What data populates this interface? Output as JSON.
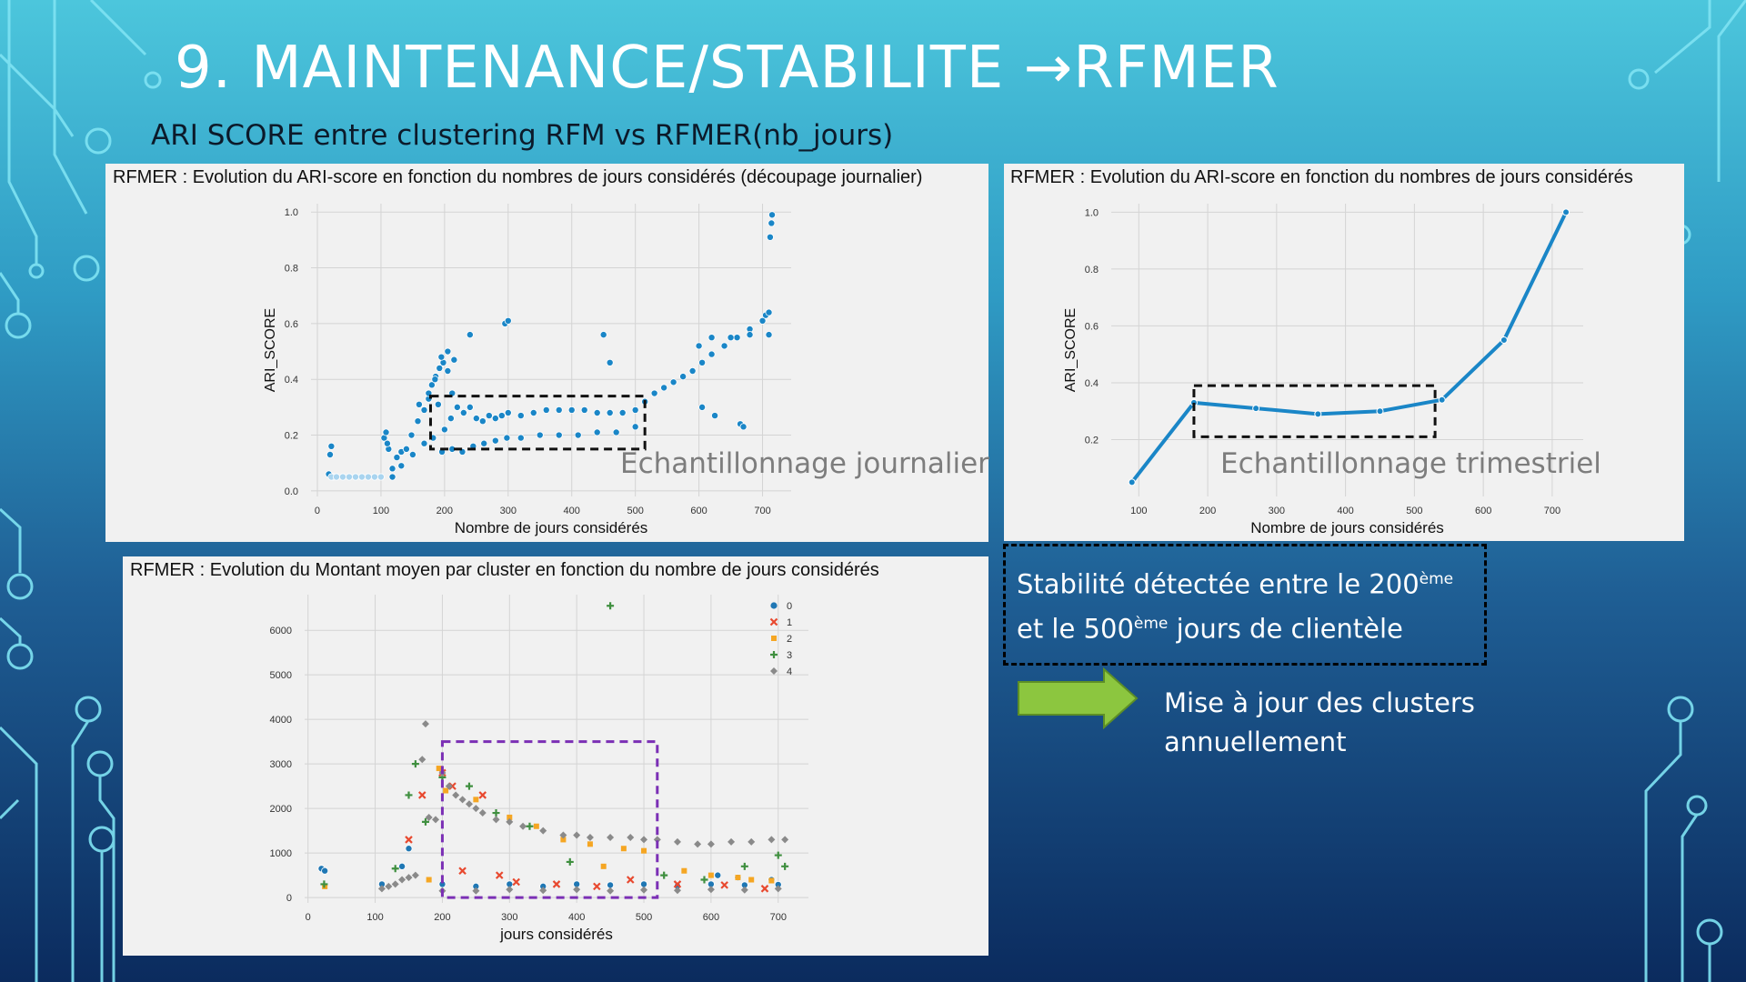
{
  "slide": {
    "title": "9. MAINTENANCE/STABILITE",
    "title_arrow": "→",
    "title_suffix": "RFMER",
    "subtitle": "ARI SCORE entre clustering RFM vs RFMER(nb_jours)",
    "note": {
      "part1": "Stabilité détectée entre le 200",
      "sup1": "ème",
      "part2": "et le 500",
      "sup2": "ème",
      "part3": " jours de clientèle"
    },
    "action_line1": "Mise à jour des clusters",
    "action_line2": "annuellement",
    "overlay_daily": "Echantillonnage journalier",
    "overlay_quarterly": "Echantillonnage trimestriel",
    "accent_color": "#1a86c7",
    "arrow_color": "#8cc63f",
    "highlight_color": "#7b2fb5"
  },
  "chart_data": [
    {
      "type": "scatter",
      "title": "RFMER : Evolution du ARI-score en fonction du nombres de jours considérés (découpage journalier)",
      "xlabel": "Nombre de jours considérés",
      "ylabel": "ARI_SCORE",
      "xlim": [
        -10,
        745
      ],
      "ylim": [
        -0.02,
        1.03
      ],
      "xticks": [
        0,
        100,
        200,
        300,
        400,
        500,
        600,
        700
      ],
      "yticks": [
        0.0,
        0.2,
        0.4,
        0.6,
        0.8,
        1.0
      ],
      "grid": true,
      "highlight_box": {
        "x": [
          178,
          515
        ],
        "y": [
          0.15,
          0.34
        ]
      },
      "series": [
        {
          "color": "#1a86c7",
          "x": [
            18,
            20,
            22,
            25,
            105,
            108,
            112,
            118,
            125,
            132,
            140,
            148,
            158,
            168,
            175,
            180,
            186,
            192,
            198,
            205,
            212,
            220,
            230,
            240,
            250,
            260,
            270,
            280,
            290,
            300,
            320,
            340,
            360,
            380,
            400,
            420,
            440,
            460,
            480,
            500,
            515,
            530,
            545,
            560,
            575,
            590,
            605,
            620,
            640,
            660,
            680,
            700,
            705,
            710,
            712,
            714,
            715,
            118,
            132,
            150,
            168,
            182,
            196,
            212,
            228,
            245,
            262,
            280,
            298,
            320,
            350,
            380,
            410,
            440,
            470,
            500,
            600,
            620,
            650,
            680,
            710,
            185,
            195,
            205,
            215,
            190,
            200,
            210,
            240,
            295,
            300,
            450,
            460,
            605,
            625,
            665,
            670,
            110,
            160,
            175
          ],
          "y": [
            0.06,
            0.13,
            0.16,
            0.05,
            0.19,
            0.21,
            0.15,
            0.08,
            0.12,
            0.14,
            0.15,
            0.2,
            0.25,
            0.29,
            0.33,
            0.38,
            0.41,
            0.44,
            0.46,
            0.43,
            0.35,
            0.3,
            0.28,
            0.3,
            0.26,
            0.25,
            0.27,
            0.26,
            0.27,
            0.28,
            0.27,
            0.28,
            0.29,
            0.29,
            0.29,
            0.29,
            0.28,
            0.28,
            0.28,
            0.29,
            0.32,
            0.35,
            0.37,
            0.39,
            0.41,
            0.43,
            0.46,
            0.49,
            0.52,
            0.55,
            0.58,
            0.61,
            0.63,
            0.64,
            0.91,
            0.96,
            0.99,
            0.05,
            0.09,
            0.13,
            0.17,
            0.19,
            0.14,
            0.15,
            0.14,
            0.16,
            0.17,
            0.18,
            0.19,
            0.19,
            0.2,
            0.2,
            0.2,
            0.21,
            0.21,
            0.23,
            0.52,
            0.55,
            0.55,
            0.56,
            0.56,
            0.4,
            0.48,
            0.5,
            0.47,
            0.31,
            0.22,
            0.26,
            0.56,
            0.6,
            0.61,
            0.56,
            0.46,
            0.3,
            0.27,
            0.24,
            0.23,
            0.17,
            0.31,
            0.35
          ]
        },
        {
          "color": "#a9d4ef",
          "x": [
            22,
            30,
            40,
            50,
            60,
            70,
            80,
            90,
            100
          ],
          "y": [
            0.05,
            0.05,
            0.05,
            0.05,
            0.05,
            0.05,
            0.05,
            0.05,
            0.05
          ]
        }
      ]
    },
    {
      "type": "line",
      "title": "RFMER : Evolution du ARI-score en fonction du nombres de jours considérés",
      "xlabel": "Nombre de jours considérés",
      "ylabel": "ARI_SCORE",
      "xlim": [
        60,
        745
      ],
      "ylim": [
        0.0,
        1.03
      ],
      "xticks": [
        100,
        200,
        300,
        400,
        500,
        600,
        700
      ],
      "yticks": [
        0.2,
        0.4,
        0.6,
        0.8,
        1.0
      ],
      "grid": true,
      "highlight_box": {
        "x": [
          180,
          530
        ],
        "y": [
          0.21,
          0.39
        ]
      },
      "series": [
        {
          "color": "#1a86c7",
          "x": [
            90,
            180,
            270,
            360,
            450,
            540,
            630,
            720
          ],
          "y": [
            0.05,
            0.33,
            0.31,
            0.29,
            0.3,
            0.34,
            0.55,
            1.0
          ]
        }
      ]
    },
    {
      "type": "scatter",
      "title": "RFMER : Evolution du Montant moyen par cluster en fonction du nombre de jours considérés",
      "xlabel": "jours considérés",
      "ylabel": "",
      "xlim": [
        -5,
        745
      ],
      "ylim": [
        -120,
        6800
      ],
      "xticks": [
        0,
        100,
        200,
        300,
        400,
        500,
        600,
        700
      ],
      "yticks": [
        0,
        1000,
        2000,
        3000,
        4000,
        5000,
        6000
      ],
      "grid": true,
      "legend": "top-right",
      "highlight_box": {
        "x": [
          200,
          520
        ],
        "y": [
          0,
          3500
        ]
      },
      "series": [
        {
          "name": "0",
          "marker": "circle",
          "color": "#1f77b4",
          "x": [
            20,
            25,
            110,
            140,
            150,
            200,
            250,
            300,
            350,
            400,
            450,
            500,
            550,
            600,
            650,
            700,
            610,
            640,
            690
          ],
          "y": [
            650,
            600,
            300,
            700,
            1100,
            300,
            250,
            300,
            250,
            300,
            280,
            300,
            260,
            300,
            280,
            290,
            500,
            450,
            400
          ]
        },
        {
          "name": "1",
          "marker": "x",
          "color": "#e8492f",
          "x": [
            150,
            170,
            200,
            215,
            230,
            260,
            285,
            310,
            370,
            430,
            480,
            550,
            620,
            680
          ],
          "y": [
            1300,
            2300,
            2800,
            2500,
            600,
            2300,
            500,
            350,
            300,
            250,
            400,
            300,
            280,
            200
          ]
        },
        {
          "name": "2",
          "marker": "square",
          "color": "#f5a623",
          "x": [
            25,
            180,
            195,
            205,
            250,
            300,
            340,
            380,
            420,
            440,
            470,
            500,
            560,
            600,
            640,
            660,
            690
          ],
          "y": [
            250,
            400,
            2900,
            2400,
            2200,
            1800,
            1600,
            1300,
            1200,
            700,
            1100,
            1050,
            600,
            500,
            450,
            400,
            380
          ]
        },
        {
          "name": "3",
          "marker": "plus",
          "color": "#3f8f3f",
          "x": [
            24,
            130,
            150,
            160,
            175,
            200,
            240,
            280,
            330,
            390,
            450,
            530,
            590,
            650,
            700,
            710
          ],
          "y": [
            300,
            650,
            2300,
            3000,
            1700,
            2700,
            2500,
            1900,
            1600,
            800,
            6550,
            500,
            400,
            700,
            950,
            700
          ]
        },
        {
          "name": "4",
          "marker": "diamond",
          "color": "#8a8a8a",
          "x": [
            110,
            120,
            130,
            140,
            150,
            160,
            170,
            175,
            180,
            190,
            200,
            210,
            220,
            230,
            240,
            250,
            260,
            280,
            300,
            320,
            350,
            380,
            400,
            420,
            450,
            480,
            500,
            520,
            550,
            580,
            600,
            630,
            660,
            690,
            710,
            200,
            250,
            300,
            350,
            400,
            450,
            500,
            550,
            600,
            650,
            700
          ],
          "y": [
            200,
            250,
            300,
            400,
            450,
            500,
            3100,
            3900,
            1800,
            1750,
            2800,
            2500,
            2300,
            2200,
            2100,
            2000,
            1900,
            1750,
            1700,
            1600,
            1500,
            1400,
            1400,
            1350,
            1350,
            1350,
            1300,
            1300,
            1250,
            1200,
            1200,
            1250,
            1250,
            1300,
            1300,
            150,
            150,
            180,
            160,
            180,
            150,
            170,
            160,
            180,
            170,
            200
          ]
        }
      ]
    }
  ]
}
